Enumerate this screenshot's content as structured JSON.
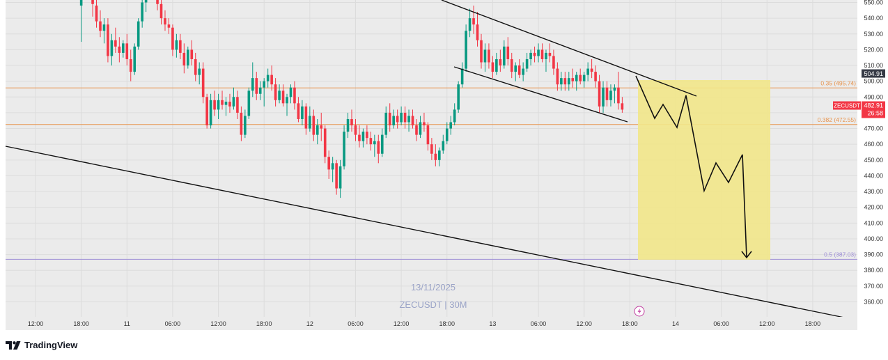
{
  "chart_data": {
    "type": "candlestick",
    "symbol": "ZECUSDT",
    "watermark": {
      "line1": "13/11/2025",
      "line2": "ZECUSDT | 30M"
    },
    "y_axis": {
      "ylim": [
        351.5,
        554
      ],
      "ticks": [
        "550.00",
        "540.00",
        "530.00",
        "520.00",
        "510.00",
        "500.00",
        "490.00",
        "480.00",
        "470.00",
        "460.00",
        "450.00",
        "440.00",
        "430.00",
        "420.00",
        "410.00",
        "400.00",
        "390.00",
        "380.00",
        "370.00",
        "360.00"
      ]
    },
    "x_axis": {
      "ticks": [
        {
          "label": "12:00",
          "t": 0
        },
        {
          "label": "18:00",
          "t": 12
        },
        {
          "label": "11",
          "t": 24
        },
        {
          "label": "06:00",
          "t": 36
        },
        {
          "label": "12:00",
          "t": 48
        },
        {
          "label": "18:00",
          "t": 60
        },
        {
          "label": "12",
          "t": 72
        },
        {
          "label": "06:00",
          "t": 84
        },
        {
          "label": "12:00",
          "t": 96
        },
        {
          "label": "18:00",
          "t": 108
        },
        {
          "label": "13",
          "t": 120
        },
        {
          "label": "06:00",
          "t": 132
        },
        {
          "label": "12:00",
          "t": 144
        },
        {
          "label": "18:00",
          "t": 156
        },
        {
          "label": "14",
          "t": 168
        },
        {
          "label": "06:00",
          "t": 180
        },
        {
          "label": "12:00",
          "t": 192
        },
        {
          "label": "18:00",
          "t": 204
        }
      ]
    },
    "price_labels": [
      {
        "value": "504.91",
        "price": 504.91,
        "color": "#363a45"
      },
      {
        "value": "ZECUSDT",
        "price": 484.6,
        "color": "#f23645"
      },
      {
        "value": "482.91",
        "price": 484.6,
        "color": "#f23645"
      },
      {
        "value": "26:58",
        "price": 481.0,
        "color": "#f23645"
      }
    ],
    "fib_levels": [
      {
        "label": "0.35 (495.74)",
        "price": 495.74,
        "color": "#e8924a"
      },
      {
        "label": "0.382 (472.55)",
        "price": 472.55,
        "color": "#e8924a"
      },
      {
        "label": "0.5 (387.03)",
        "price": 387.03,
        "color": "#9c8cd6"
      }
    ],
    "colors": {
      "up": "#089981",
      "down": "#f23645",
      "projection_box": "#f2e78a"
    },
    "candles": [
      {
        "t": 12,
        "o": 548,
        "h": 555,
        "l": 525,
        "c": 552
      },
      {
        "t": 15,
        "o": 553,
        "h": 560,
        "l": 541,
        "c": 549
      },
      {
        "t": 16,
        "o": 548,
        "h": 552,
        "l": 534,
        "c": 538
      },
      {
        "t": 17,
        "o": 538,
        "h": 545,
        "l": 528,
        "c": 532
      },
      {
        "t": 18,
        "o": 532,
        "h": 540,
        "l": 524,
        "c": 536
      },
      {
        "t": 19,
        "o": 536,
        "h": 540,
        "l": 512,
        "c": 516
      },
      {
        "t": 20,
        "o": 516,
        "h": 530,
        "l": 510,
        "c": 526
      },
      {
        "t": 21,
        "o": 526,
        "h": 534,
        "l": 518,
        "c": 522
      },
      {
        "t": 22,
        "o": 522,
        "h": 528,
        "l": 512,
        "c": 518
      },
      {
        "t": 23,
        "o": 518,
        "h": 526,
        "l": 515,
        "c": 524
      },
      {
        "t": 24,
        "o": 524,
        "h": 530,
        "l": 510,
        "c": 514
      },
      {
        "t": 25,
        "o": 514,
        "h": 520,
        "l": 500,
        "c": 506
      },
      {
        "t": 26,
        "o": 506,
        "h": 524,
        "l": 504,
        "c": 522
      },
      {
        "t": 27,
        "o": 522,
        "h": 540,
        "l": 520,
        "c": 538
      },
      {
        "t": 28,
        "o": 538,
        "h": 554,
        "l": 534,
        "c": 550
      },
      {
        "t": 29,
        "o": 550,
        "h": 556,
        "l": 544,
        "c": 552
      },
      {
        "t": 32,
        "o": 552,
        "h": 556,
        "l": 545,
        "c": 549
      },
      {
        "t": 33,
        "o": 549,
        "h": 552,
        "l": 536,
        "c": 540
      },
      {
        "t": 34,
        "o": 540,
        "h": 545,
        "l": 532,
        "c": 536
      },
      {
        "t": 35,
        "o": 536,
        "h": 540,
        "l": 530,
        "c": 534
      },
      {
        "t": 36,
        "o": 534,
        "h": 536,
        "l": 516,
        "c": 520
      },
      {
        "t": 37,
        "o": 520,
        "h": 530,
        "l": 515,
        "c": 526
      },
      {
        "t": 38,
        "o": 526,
        "h": 530,
        "l": 514,
        "c": 518
      },
      {
        "t": 39,
        "o": 518,
        "h": 524,
        "l": 505,
        "c": 510
      },
      {
        "t": 40,
        "o": 510,
        "h": 522,
        "l": 508,
        "c": 520
      },
      {
        "t": 41,
        "o": 520,
        "h": 526,
        "l": 510,
        "c": 514
      },
      {
        "t": 42,
        "o": 514,
        "h": 518,
        "l": 500,
        "c": 504
      },
      {
        "t": 43,
        "o": 504,
        "h": 512,
        "l": 498,
        "c": 508
      },
      {
        "t": 44,
        "o": 508,
        "h": 512,
        "l": 486,
        "c": 490
      },
      {
        "t": 45,
        "o": 490,
        "h": 492,
        "l": 470,
        "c": 472
      },
      {
        "t": 46,
        "o": 472,
        "h": 492,
        "l": 470,
        "c": 488
      },
      {
        "t": 47,
        "o": 488,
        "h": 494,
        "l": 478,
        "c": 482
      },
      {
        "t": 48,
        "o": 482,
        "h": 492,
        "l": 476,
        "c": 488
      },
      {
        "t": 49,
        "o": 488,
        "h": 494,
        "l": 482,
        "c": 485
      },
      {
        "t": 50,
        "o": 485,
        "h": 490,
        "l": 478,
        "c": 487
      },
      {
        "t": 51,
        "o": 487,
        "h": 492,
        "l": 480,
        "c": 484
      },
      {
        "t": 52,
        "o": 484,
        "h": 496,
        "l": 482,
        "c": 490
      },
      {
        "t": 53,
        "o": 490,
        "h": 494,
        "l": 476,
        "c": 480
      },
      {
        "t": 54,
        "o": 480,
        "h": 484,
        "l": 462,
        "c": 466
      },
      {
        "t": 55,
        "o": 466,
        "h": 482,
        "l": 464,
        "c": 478
      },
      {
        "t": 56,
        "o": 478,
        "h": 496,
        "l": 476,
        "c": 494
      },
      {
        "t": 57,
        "o": 494,
        "h": 512,
        "l": 490,
        "c": 502
      },
      {
        "t": 58,
        "o": 502,
        "h": 506,
        "l": 488,
        "c": 492
      },
      {
        "t": 59,
        "o": 492,
        "h": 500,
        "l": 488,
        "c": 496
      },
      {
        "t": 60,
        "o": 496,
        "h": 502,
        "l": 484,
        "c": 500
      },
      {
        "t": 61,
        "o": 500,
        "h": 508,
        "l": 496,
        "c": 504
      },
      {
        "t": 62,
        "o": 504,
        "h": 510,
        "l": 494,
        "c": 498
      },
      {
        "t": 63,
        "o": 498,
        "h": 502,
        "l": 484,
        "c": 488
      },
      {
        "t": 64,
        "o": 488,
        "h": 498,
        "l": 486,
        "c": 494
      },
      {
        "t": 65,
        "o": 494,
        "h": 498,
        "l": 484,
        "c": 486
      },
      {
        "t": 66,
        "o": 486,
        "h": 492,
        "l": 478,
        "c": 490
      },
      {
        "t": 67,
        "o": 490,
        "h": 498,
        "l": 486,
        "c": 496
      },
      {
        "t": 68,
        "o": 496,
        "h": 500,
        "l": 482,
        "c": 486
      },
      {
        "t": 69,
        "o": 486,
        "h": 490,
        "l": 474,
        "c": 476
      },
      {
        "t": 70,
        "o": 476,
        "h": 488,
        "l": 472,
        "c": 484
      },
      {
        "t": 71,
        "o": 484,
        "h": 486,
        "l": 466,
        "c": 470
      },
      {
        "t": 72,
        "o": 470,
        "h": 484,
        "l": 468,
        "c": 478
      },
      {
        "t": 73,
        "o": 478,
        "h": 482,
        "l": 462,
        "c": 466
      },
      {
        "t": 74,
        "o": 466,
        "h": 476,
        "l": 460,
        "c": 472
      },
      {
        "t": 75,
        "o": 472,
        "h": 480,
        "l": 462,
        "c": 470
      },
      {
        "t": 76,
        "o": 470,
        "h": 472,
        "l": 448,
        "c": 452
      },
      {
        "t": 77,
        "o": 452,
        "h": 456,
        "l": 438,
        "c": 444
      },
      {
        "t": 78,
        "o": 444,
        "h": 452,
        "l": 436,
        "c": 448
      },
      {
        "t": 79,
        "o": 448,
        "h": 450,
        "l": 428,
        "c": 432
      },
      {
        "t": 80,
        "o": 432,
        "h": 450,
        "l": 426,
        "c": 446
      },
      {
        "t": 81,
        "o": 446,
        "h": 472,
        "l": 444,
        "c": 468
      },
      {
        "t": 82,
        "o": 468,
        "h": 480,
        "l": 464,
        "c": 476
      },
      {
        "t": 83,
        "o": 476,
        "h": 482,
        "l": 468,
        "c": 472
      },
      {
        "t": 84,
        "o": 472,
        "h": 476,
        "l": 462,
        "c": 466
      },
      {
        "t": 85,
        "o": 466,
        "h": 472,
        "l": 458,
        "c": 462
      },
      {
        "t": 86,
        "o": 462,
        "h": 470,
        "l": 458,
        "c": 468
      },
      {
        "t": 87,
        "o": 468,
        "h": 472,
        "l": 460,
        "c": 464
      },
      {
        "t": 88,
        "o": 464,
        "h": 468,
        "l": 456,
        "c": 460
      },
      {
        "t": 89,
        "o": 460,
        "h": 466,
        "l": 452,
        "c": 462
      },
      {
        "t": 90,
        "o": 462,
        "h": 466,
        "l": 448,
        "c": 454
      },
      {
        "t": 91,
        "o": 454,
        "h": 470,
        "l": 452,
        "c": 466
      },
      {
        "t": 92,
        "o": 466,
        "h": 484,
        "l": 464,
        "c": 480
      },
      {
        "t": 93,
        "o": 480,
        "h": 486,
        "l": 468,
        "c": 472
      },
      {
        "t": 94,
        "o": 472,
        "h": 482,
        "l": 470,
        "c": 478
      },
      {
        "t": 95,
        "o": 478,
        "h": 482,
        "l": 470,
        "c": 474
      },
      {
        "t": 96,
        "o": 474,
        "h": 484,
        "l": 472,
        "c": 480
      },
      {
        "t": 97,
        "o": 480,
        "h": 484,
        "l": 470,
        "c": 474
      },
      {
        "t": 98,
        "o": 474,
        "h": 482,
        "l": 468,
        "c": 478
      },
      {
        "t": 99,
        "o": 478,
        "h": 482,
        "l": 470,
        "c": 472
      },
      {
        "t": 100,
        "o": 472,
        "h": 476,
        "l": 462,
        "c": 466
      },
      {
        "t": 101,
        "o": 466,
        "h": 478,
        "l": 464,
        "c": 474
      },
      {
        "t": 102,
        "o": 474,
        "h": 480,
        "l": 468,
        "c": 472
      },
      {
        "t": 103,
        "o": 472,
        "h": 474,
        "l": 456,
        "c": 460
      },
      {
        "t": 104,
        "o": 460,
        "h": 464,
        "l": 450,
        "c": 454
      },
      {
        "t": 105,
        "o": 454,
        "h": 460,
        "l": 446,
        "c": 450
      },
      {
        "t": 106,
        "o": 450,
        "h": 458,
        "l": 446,
        "c": 456
      },
      {
        "t": 107,
        "o": 456,
        "h": 466,
        "l": 454,
        "c": 462
      },
      {
        "t": 108,
        "o": 462,
        "h": 474,
        "l": 460,
        "c": 470
      },
      {
        "t": 109,
        "o": 470,
        "h": 478,
        "l": 466,
        "c": 474
      },
      {
        "t": 110,
        "o": 474,
        "h": 486,
        "l": 472,
        "c": 482
      },
      {
        "t": 111,
        "o": 482,
        "h": 500,
        "l": 480,
        "c": 498
      },
      {
        "t": 112,
        "o": 498,
        "h": 512,
        "l": 496,
        "c": 508
      },
      {
        "t": 113,
        "o": 508,
        "h": 536,
        "l": 506,
        "c": 532
      },
      {
        "t": 114,
        "o": 532,
        "h": 546,
        "l": 528,
        "c": 540
      },
      {
        "t": 115,
        "o": 540,
        "h": 548,
        "l": 530,
        "c": 536
      },
      {
        "t": 116,
        "o": 536,
        "h": 544,
        "l": 522,
        "c": 526
      },
      {
        "t": 117,
        "o": 526,
        "h": 530,
        "l": 508,
        "c": 512
      },
      {
        "t": 118,
        "o": 512,
        "h": 524,
        "l": 506,
        "c": 520
      },
      {
        "t": 119,
        "o": 520,
        "h": 524,
        "l": 508,
        "c": 512
      },
      {
        "t": 120,
        "o": 512,
        "h": 516,
        "l": 502,
        "c": 506
      },
      {
        "t": 121,
        "o": 506,
        "h": 518,
        "l": 504,
        "c": 514
      },
      {
        "t": 122,
        "o": 514,
        "h": 520,
        "l": 506,
        "c": 510
      },
      {
        "t": 123,
        "o": 510,
        "h": 526,
        "l": 508,
        "c": 522
      },
      {
        "t": 124,
        "o": 522,
        "h": 528,
        "l": 510,
        "c": 514
      },
      {
        "t": 125,
        "o": 514,
        "h": 518,
        "l": 502,
        "c": 506
      },
      {
        "t": 126,
        "o": 506,
        "h": 512,
        "l": 500,
        "c": 510
      },
      {
        "t": 127,
        "o": 510,
        "h": 514,
        "l": 502,
        "c": 504
      },
      {
        "t": 128,
        "o": 504,
        "h": 512,
        "l": 500,
        "c": 508
      },
      {
        "t": 129,
        "o": 508,
        "h": 518,
        "l": 506,
        "c": 514
      },
      {
        "t": 130,
        "o": 514,
        "h": 520,
        "l": 510,
        "c": 518
      },
      {
        "t": 131,
        "o": 518,
        "h": 522,
        "l": 512,
        "c": 516
      },
      {
        "t": 132,
        "o": 516,
        "h": 524,
        "l": 512,
        "c": 520
      },
      {
        "t": 133,
        "o": 520,
        "h": 524,
        "l": 512,
        "c": 514
      },
      {
        "t": 134,
        "o": 514,
        "h": 520,
        "l": 506,
        "c": 518
      },
      {
        "t": 135,
        "o": 518,
        "h": 524,
        "l": 512,
        "c": 516
      },
      {
        "t": 136,
        "o": 516,
        "h": 520,
        "l": 504,
        "c": 508
      },
      {
        "t": 137,
        "o": 508,
        "h": 512,
        "l": 494,
        "c": 498
      },
      {
        "t": 138,
        "o": 498,
        "h": 506,
        "l": 494,
        "c": 502
      },
      {
        "t": 139,
        "o": 502,
        "h": 506,
        "l": 494,
        "c": 498
      },
      {
        "t": 140,
        "o": 498,
        "h": 506,
        "l": 494,
        "c": 502
      },
      {
        "t": 141,
        "o": 502,
        "h": 508,
        "l": 496,
        "c": 500
      },
      {
        "t": 142,
        "o": 500,
        "h": 506,
        "l": 494,
        "c": 504
      },
      {
        "t": 143,
        "o": 504,
        "h": 508,
        "l": 498,
        "c": 500
      },
      {
        "t": 144,
        "o": 500,
        "h": 506,
        "l": 496,
        "c": 504
      },
      {
        "t": 145,
        "o": 504,
        "h": 512,
        "l": 500,
        "c": 508
      },
      {
        "t": 146,
        "o": 508,
        "h": 514,
        "l": 502,
        "c": 506
      },
      {
        "t": 147,
        "o": 506,
        "h": 510,
        "l": 496,
        "c": 500
      },
      {
        "t": 148,
        "o": 500,
        "h": 504,
        "l": 480,
        "c": 484
      },
      {
        "t": 149,
        "o": 484,
        "h": 500,
        "l": 480,
        "c": 496
      },
      {
        "t": 150,
        "o": 496,
        "h": 500,
        "l": 484,
        "c": 488
      },
      {
        "t": 151,
        "o": 488,
        "h": 498,
        "l": 484,
        "c": 494
      },
      {
        "t": 152,
        "o": 494,
        "h": 498,
        "l": 486,
        "c": 496
      },
      {
        "t": 153,
        "o": 496,
        "h": 506,
        "l": 482,
        "c": 486
      },
      {
        "t": 154,
        "o": 486,
        "h": 490,
        "l": 480,
        "c": 482
      }
    ],
    "trendlines": [
      {
        "name": "upper-channel-line",
        "points": [
          [
            634,
            0
          ],
          [
            1000,
            138
          ]
        ]
      },
      {
        "name": "lower-channel-line",
        "points": [
          [
            652,
            96
          ],
          [
            901,
            175
          ]
        ]
      },
      {
        "name": "long-trend-line",
        "points": [
          [
            8,
            210
          ],
          [
            1212,
            456
          ]
        ]
      }
    ],
    "projection_box": {
      "x1": 916,
      "y1": 115,
      "x2": 1106,
      "y2": 373
    },
    "projection_path": [
      [
        913,
        109
      ],
      [
        940,
        170
      ],
      [
        952,
        150
      ],
      [
        972,
        183
      ],
      [
        985,
        137
      ],
      [
        1011,
        274
      ],
      [
        1028,
        234
      ],
      [
        1046,
        262
      ],
      [
        1066,
        222
      ],
      [
        1072,
        370
      ]
    ],
    "projection_arrow_tip": [
      1072,
      370
    ]
  },
  "footer": {
    "brand": "TradingView"
  }
}
